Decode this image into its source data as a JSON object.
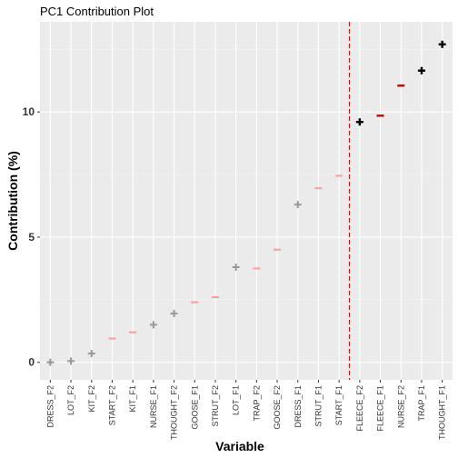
{
  "chart_data": {
    "type": "scatter",
    "title": "PC1 Contribution Plot",
    "xlabel": "Variable",
    "ylabel": "Contribution (%)",
    "ylim": [
      -0.7,
      13.6
    ],
    "yticks": [
      0,
      5,
      10
    ],
    "grid": true,
    "threshold_line": {
      "after_category": "START_F1",
      "color": "#ff0000",
      "style": "dashed"
    },
    "categories": [
      "DRESS_F2",
      "LOT_F2",
      "KIT_F2",
      "START_F2",
      "KIT_F1",
      "NURSE_F1",
      "THOUGHT_F2",
      "GOOSE_F1",
      "STRUT_F2",
      "LOT_F1",
      "TRAP_F2",
      "GOOSE_F2",
      "DRESS_F1",
      "STRUT_F1",
      "START_F1",
      "FLEECE_F2",
      "FLEECE_F1",
      "NURSE_F2",
      "TRAP_F1",
      "THOUGHT_F1"
    ],
    "values": [
      0.0,
      0.05,
      0.35,
      0.95,
      1.2,
      1.5,
      1.95,
      2.4,
      2.6,
      3.8,
      3.75,
      4.5,
      6.3,
      6.95,
      7.45,
      9.6,
      9.85,
      11.05,
      11.65,
      12.7
    ],
    "markers": [
      "plus",
      "plus",
      "plus",
      "dash",
      "dash",
      "plus",
      "plus",
      "dash",
      "dash",
      "plus",
      "dash",
      "dash",
      "plus",
      "dash",
      "dash",
      "plus",
      "dash",
      "dash",
      "plus",
      "plus"
    ],
    "colors": [
      "#999999",
      "#999999",
      "#999999",
      "#ff9999",
      "#ff9999",
      "#999999",
      "#999999",
      "#ff9999",
      "#ff9999",
      "#999999",
      "#ff9999",
      "#ff9999",
      "#999999",
      "#ff9999",
      "#ff9999",
      "#000000",
      "#cc0000",
      "#cc0000",
      "#000000",
      "#000000"
    ]
  }
}
